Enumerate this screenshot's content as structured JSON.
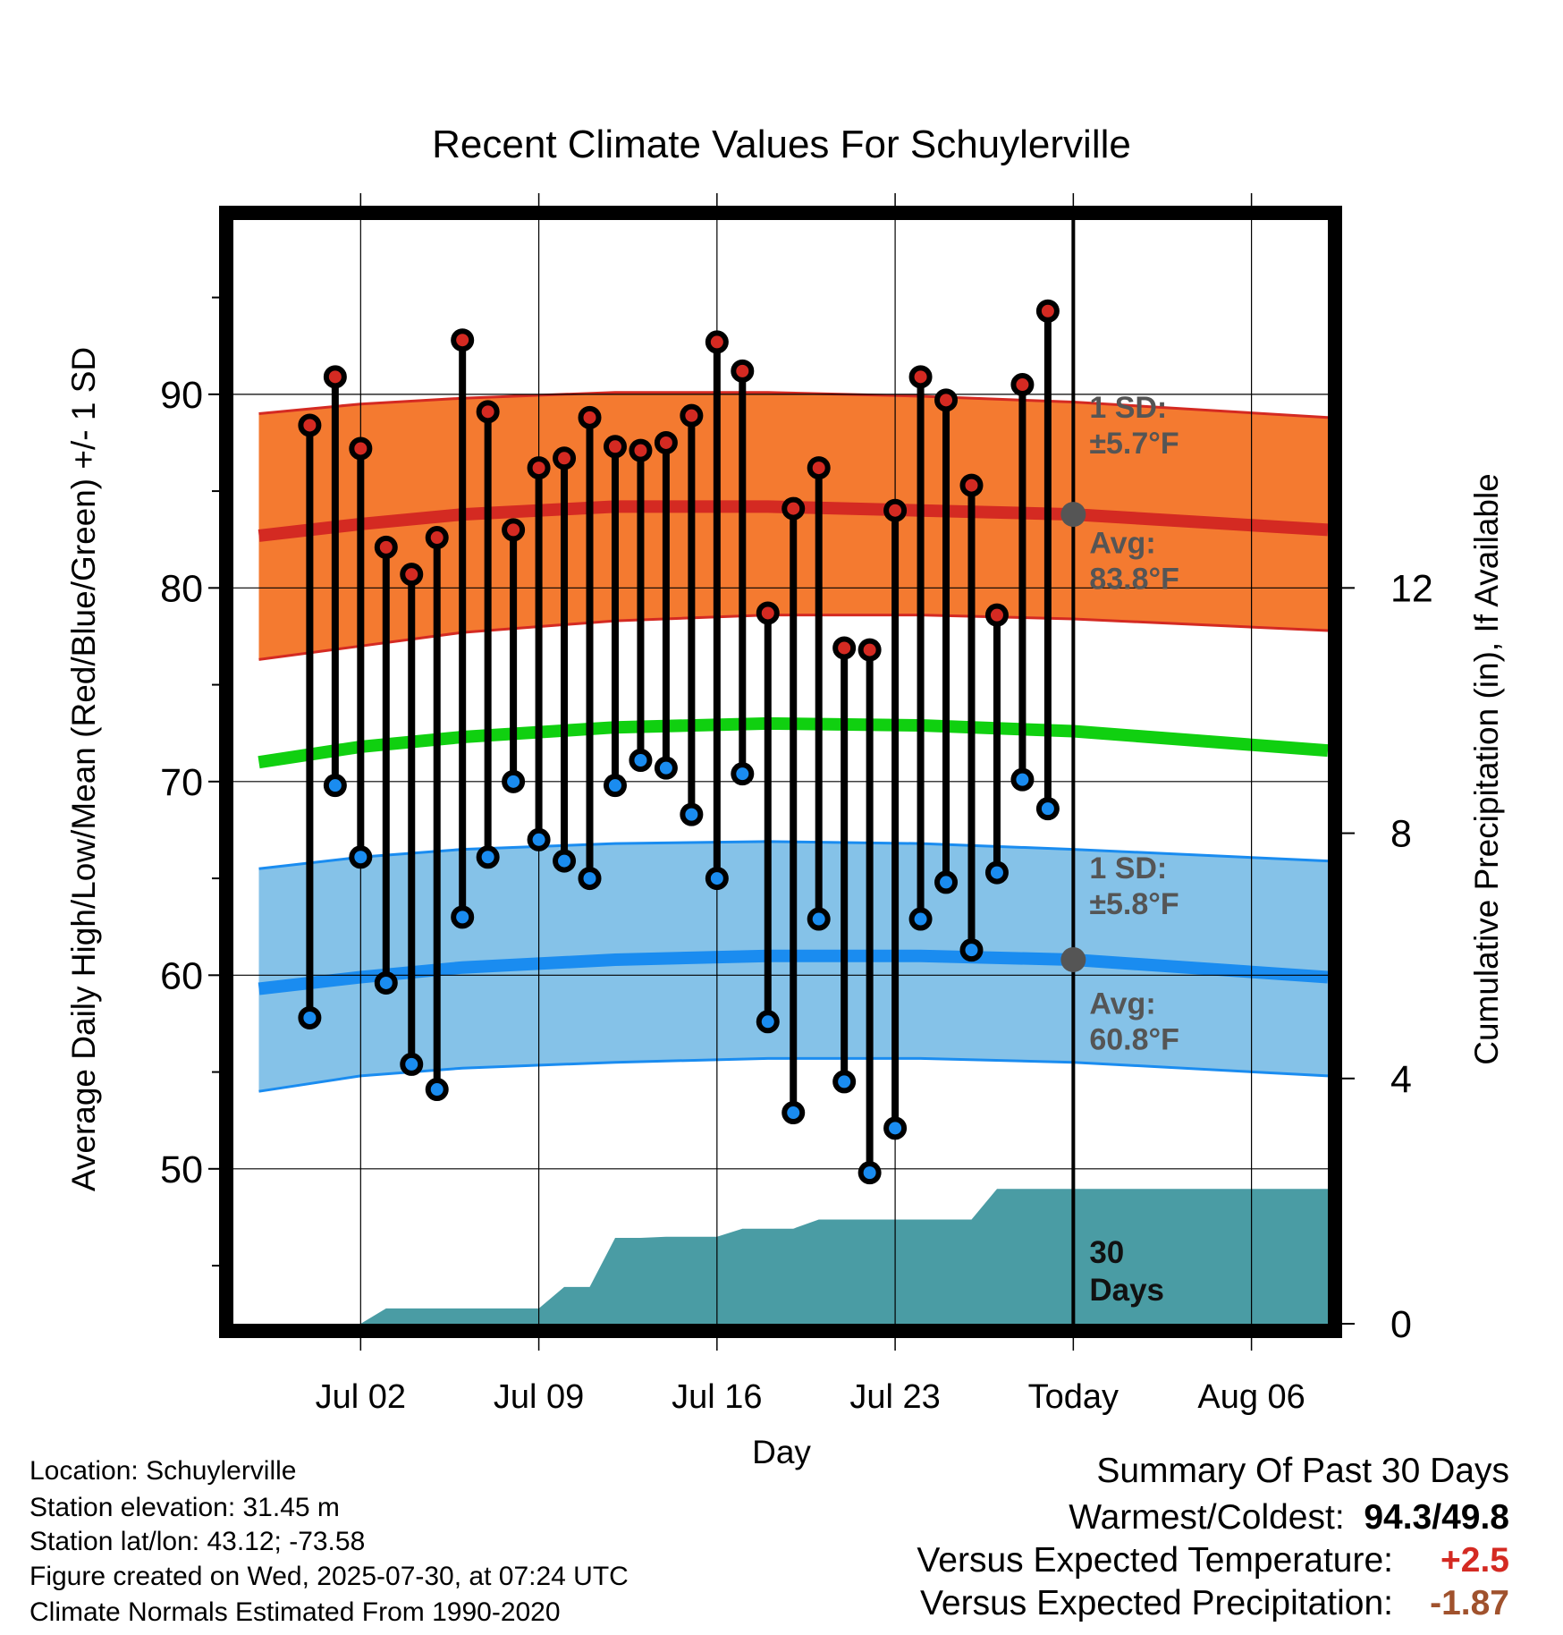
{
  "chart_data": {
    "type": "line",
    "title": "Recent Climate Values For Schuylerville",
    "xlabel": "Day",
    "ylabel": "Average Daily High/Low/Mean (Red/Blue/Green) +/- 1 SD",
    "y2label": "Cumulative Precipitation (in), If Available",
    "xlim": [
      "2025-06-27",
      "2025-08-09"
    ],
    "ylim": [
      42,
      99
    ],
    "y2lim": [
      0,
      18
    ],
    "x_ticks": [
      {
        "date": "2025-07-02",
        "label": "Jul 02"
      },
      {
        "date": "2025-07-09",
        "label": "Jul 09"
      },
      {
        "date": "2025-07-16",
        "label": "Jul 16"
      },
      {
        "date": "2025-07-23",
        "label": "Jul 23"
      },
      {
        "date": "2025-07-30",
        "label": "Today"
      },
      {
        "date": "2025-08-06",
        "label": "Aug 06"
      }
    ],
    "y_ticks": [
      50,
      60,
      70,
      80,
      90
    ],
    "y2_ticks": [
      0,
      4,
      8,
      12
    ],
    "grid": true,
    "today": "2025-07-30",
    "colors": {
      "high_band": "#f47a30",
      "high_line": "#d42a22",
      "low_band": "#85c2e8",
      "low_line": "#1a8cf0",
      "mean_line": "#10d010",
      "precip": "#4a9ca4",
      "high_marker": "#d42a22",
      "low_marker": "#1a8cf0",
      "annotation": "#555555"
    },
    "normal_dates": [
      "2025-06-28",
      "2025-07-02",
      "2025-07-06",
      "2025-07-12",
      "2025-07-18",
      "2025-07-24",
      "2025-07-30",
      "2025-08-09"
    ],
    "series": [
      {
        "name": "Normal High",
        "values": [
          82.7,
          83.3,
          83.8,
          84.2,
          84.2,
          84.0,
          83.8,
          83.0
        ]
      },
      {
        "name": "Normal High +1 SD",
        "values": [
          89.0,
          89.5,
          89.8,
          90.1,
          90.1,
          89.9,
          89.6,
          88.8
        ]
      },
      {
        "name": "Normal High -1 SD",
        "values": [
          76.3,
          77.0,
          77.7,
          78.3,
          78.6,
          78.6,
          78.4,
          77.8
        ]
      },
      {
        "name": "Normal Mean",
        "values": [
          71.0,
          71.8,
          72.3,
          72.8,
          73.0,
          72.9,
          72.6,
          71.6
        ]
      },
      {
        "name": "Normal Low",
        "values": [
          59.3,
          59.9,
          60.4,
          60.8,
          61.0,
          61.0,
          60.8,
          59.9
        ]
      },
      {
        "name": "Normal Low +1 SD",
        "values": [
          65.5,
          66.1,
          66.5,
          66.8,
          66.9,
          66.8,
          66.5,
          65.9
        ]
      },
      {
        "name": "Normal Low -1 SD",
        "values": [
          54.0,
          54.8,
          55.2,
          55.5,
          55.7,
          55.7,
          55.5,
          54.8
        ]
      }
    ],
    "daily": {
      "dates": [
        "2025-06-30",
        "2025-07-01",
        "2025-07-02",
        "2025-07-03",
        "2025-07-04",
        "2025-07-05",
        "2025-07-06",
        "2025-07-07",
        "2025-07-08",
        "2025-07-09",
        "2025-07-10",
        "2025-07-11",
        "2025-07-12",
        "2025-07-13",
        "2025-07-14",
        "2025-07-15",
        "2025-07-16",
        "2025-07-17",
        "2025-07-18",
        "2025-07-19",
        "2025-07-20",
        "2025-07-21",
        "2025-07-22",
        "2025-07-23",
        "2025-07-24",
        "2025-07-25",
        "2025-07-26",
        "2025-07-27",
        "2025-07-28",
        "2025-07-29"
      ],
      "high": [
        88.4,
        90.9,
        87.2,
        82.1,
        80.7,
        82.6,
        92.8,
        89.1,
        83.0,
        86.2,
        86.7,
        88.8,
        87.3,
        87.1,
        87.5,
        88.9,
        92.7,
        91.2,
        78.7,
        84.1,
        86.2,
        76.9,
        76.8,
        84.0,
        90.9,
        89.7,
        85.3,
        78.6,
        90.5,
        94.3
      ],
      "low": [
        57.8,
        69.8,
        66.1,
        59.6,
        55.4,
        54.1,
        63.0,
        66.1,
        70.0,
        67.0,
        65.9,
        65.0,
        69.8,
        71.1,
        70.7,
        68.3,
        65.0,
        70.4,
        57.6,
        52.9,
        62.9,
        54.5,
        49.8,
        52.1,
        62.9,
        64.8,
        61.3,
        65.3,
        70.1,
        68.6
      ]
    },
    "precipitation": {
      "dates": [
        "2025-06-30",
        "2025-07-01",
        "2025-07-02",
        "2025-07-03",
        "2025-07-04",
        "2025-07-05",
        "2025-07-06",
        "2025-07-07",
        "2025-07-08",
        "2025-07-09",
        "2025-07-10",
        "2025-07-11",
        "2025-07-12",
        "2025-07-13",
        "2025-07-14",
        "2025-07-15",
        "2025-07-16",
        "2025-07-17",
        "2025-07-18",
        "2025-07-19",
        "2025-07-20",
        "2025-07-21",
        "2025-07-22",
        "2025-07-23",
        "2025-07-24",
        "2025-07-25",
        "2025-07-26",
        "2025-07-27",
        "2025-07-28",
        "2025-07-29",
        "2025-07-30",
        "2025-08-09"
      ],
      "cumulative": [
        0.0,
        0.0,
        0.0,
        0.25,
        0.25,
        0.25,
        0.25,
        0.25,
        0.25,
        0.25,
        0.6,
        0.6,
        1.4,
        1.4,
        1.42,
        1.42,
        1.42,
        1.55,
        1.55,
        1.55,
        1.7,
        1.7,
        1.7,
        1.7,
        1.7,
        1.7,
        1.7,
        2.2,
        2.2,
        2.2,
        2.2,
        2.2
      ]
    },
    "annotations": {
      "high_sd": [
        "1 SD:",
        "±5.7°F"
      ],
      "high_avg": [
        "Avg:",
        "83.8°F"
      ],
      "low_sd": [
        "1 SD:",
        "±5.8°F"
      ],
      "low_avg": [
        "Avg:",
        "60.8°F"
      ],
      "days": [
        "30",
        "Days"
      ]
    },
    "today_markers": {
      "high": 83.8,
      "low": 60.8
    }
  },
  "info": {
    "location": "Location: Schuylerville",
    "elevation": "Station elevation: 31.45 m",
    "latlon": "Station lat/lon: 43.12; -73.58",
    "created": "Figure created on Wed, 2025-07-30, at 07:24 UTC",
    "normals": "Climate Normals Estimated From 1990-2020"
  },
  "summary": {
    "title": "Summary Of Past 30 Days",
    "warm_cold_label": "Warmest/Coldest:",
    "warmest": "94.3",
    "separator": "/",
    "coldest": "49.8",
    "temp_label": "Versus Expected Temperature:",
    "temp_value": "+2.5",
    "temp_color": "#d42a22",
    "precip_label": "Versus Expected Precipitation:",
    "precip_value": "-1.87",
    "precip_color": "#a0522d"
  }
}
